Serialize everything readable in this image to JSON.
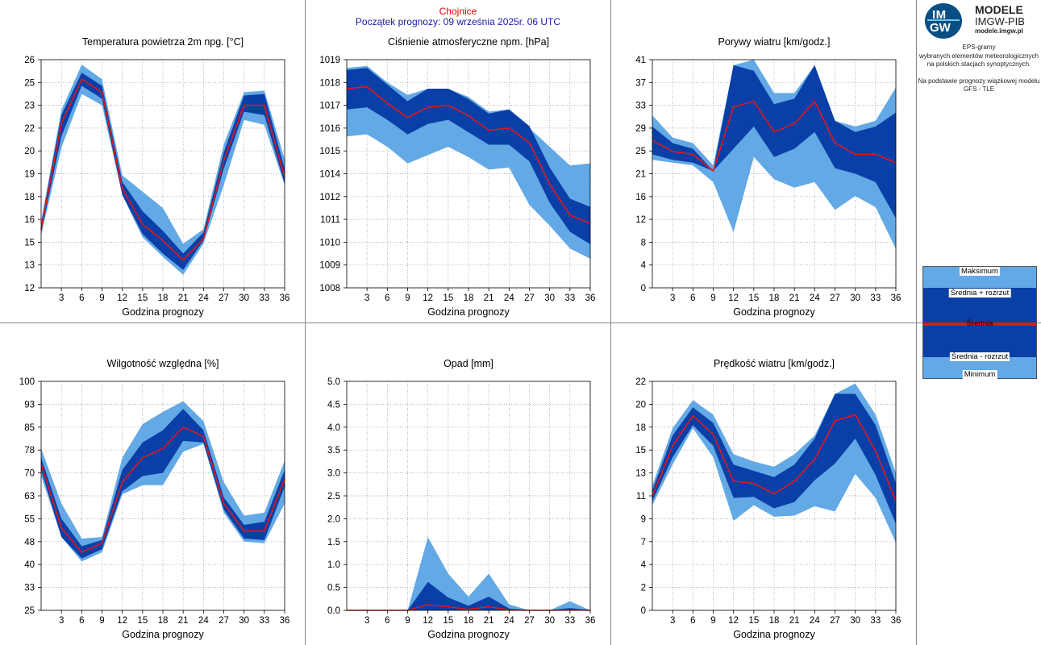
{
  "header": {
    "station": "Chojnice",
    "forecast_start": "Początek prognozy: 09 września 2025r. 06 UTC"
  },
  "xlabel": "Godzina prognozy",
  "colors": {
    "outer_band": "#62a9e5",
    "inner_band": "#0a3fa8",
    "mean": "#e01818",
    "grid": "#9a9a9a"
  },
  "side": {
    "brand_line1": "MODELE",
    "brand_line2": "IMGW-PIB",
    "brand_line3": "modele.imgw.pl",
    "logo_top": "IM",
    "logo_bottom": "GW",
    "description_lines": [
      "EPS-gramy",
      "wybranych elementów meteorologicznych",
      "na polskich stacjach  synoptycznych.",
      "",
      "Na podstawie prognozy wiązkowej modelu",
      "GFS - TLE"
    ],
    "legend": {
      "max": "Maksimum",
      "mean_plus": "Średnia + rozrzut",
      "mean": "Średnia",
      "mean_minus": "Średnia - rozrzut",
      "min": "Minimum"
    }
  },
  "chart_data": [
    {
      "type": "area",
      "title": "Temperatura powietrza 2m npg. [°C]",
      "x": [
        0,
        3,
        6,
        9,
        12,
        15,
        18,
        21,
        24,
        27,
        30,
        33,
        36
      ],
      "xticks": [
        3,
        6,
        9,
        12,
        15,
        18,
        21,
        24,
        27,
        30,
        33,
        36
      ],
      "yticks": [
        "12",
        "13",
        "15",
        "16",
        "18",
        "19",
        "20",
        "22",
        "23",
        "25",
        "26"
      ],
      "ylim": [
        12,
        26
      ],
      "max": [
        16.1,
        22.9,
        25.7,
        24.8,
        18.9,
        17.9,
        16.9,
        14.7,
        15.6,
        20.8,
        24.0,
        24.1,
        19.9
      ],
      "upper": [
        15.9,
        22.6,
        25.2,
        24.4,
        18.5,
        16.7,
        15.5,
        14.1,
        15.4,
        20.3,
        23.8,
        23.9,
        19.3
      ],
      "mean": [
        15.6,
        22.1,
        24.8,
        24.0,
        18.1,
        15.9,
        14.9,
        13.7,
        15.0,
        19.8,
        23.2,
        23.2,
        18.8
      ],
      "lower": [
        15.4,
        21.3,
        24.4,
        23.6,
        17.7,
        15.3,
        14.1,
        13.1,
        14.9,
        19.3,
        22.8,
        22.6,
        18.4
      ],
      "min": [
        15.2,
        20.6,
        23.9,
        23.2,
        17.7,
        15.1,
        13.9,
        12.8,
        14.7,
        18.3,
        22.3,
        22.0,
        18.3
      ]
    },
    {
      "type": "area",
      "title": "Ciśnienie atmosferyczne npm. [hPa]",
      "x": [
        0,
        3,
        6,
        9,
        12,
        15,
        18,
        21,
        24,
        27,
        30,
        33,
        36
      ],
      "xticks": [
        3,
        6,
        9,
        12,
        15,
        18,
        21,
        24,
        27,
        30,
        33,
        36
      ],
      "yticks": [
        "1008",
        "1009",
        "1010",
        "1011",
        "1012",
        "1014",
        "1015",
        "1016",
        "1017",
        "1018",
        "1019"
      ],
      "ylim": [
        1008,
        1019
      ],
      "max": [
        1018.6,
        1018.7,
        1017.9,
        1017.3,
        1017.6,
        1017.6,
        1017.2,
        1016.5,
        1016.6,
        1015.7,
        1014.8,
        1013.9,
        1014.0
      ],
      "upper": [
        1018.5,
        1018.6,
        1017.8,
        1017.0,
        1017.6,
        1017.6,
        1017.1,
        1016.4,
        1016.6,
        1015.8,
        1013.8,
        1012.3,
        1011.9
      ],
      "mean": [
        1017.6,
        1017.7,
        1016.9,
        1016.2,
        1016.7,
        1016.8,
        1016.3,
        1015.6,
        1015.7,
        1015.0,
        1013.0,
        1011.5,
        1011.1
      ],
      "lower": [
        1016.6,
        1016.7,
        1016.1,
        1015.4,
        1015.9,
        1016.1,
        1015.5,
        1014.9,
        1014.9,
        1014.1,
        1012.1,
        1010.7,
        1010.1
      ],
      "min": [
        1015.3,
        1015.4,
        1014.8,
        1014.0,
        1014.4,
        1014.8,
        1014.3,
        1013.7,
        1013.8,
        1012.0,
        1011.0,
        1009.9,
        1009.4
      ]
    },
    {
      "type": "area",
      "title": "Porywy wiatru [km/godz.]",
      "x": [
        0,
        3,
        6,
        9,
        12,
        15,
        18,
        21,
        24,
        27,
        30,
        33,
        36
      ],
      "xticks": [
        3,
        6,
        9,
        12,
        15,
        18,
        21,
        24,
        27,
        30,
        33,
        36
      ],
      "yticks": [
        "0",
        "4",
        "8",
        "12",
        "16",
        "21",
        "25",
        "29",
        "33",
        "37",
        "41"
      ],
      "ylim": [
        0,
        41
      ],
      "max": [
        31,
        27,
        26,
        22,
        40,
        41,
        35,
        35,
        40,
        30,
        29,
        30,
        36
      ],
      "upper": [
        29,
        26,
        25,
        21,
        40,
        39,
        33,
        34,
        40,
        30,
        28,
        29,
        31.5
      ],
      "mean": [
        26.5,
        24.5,
        24,
        21,
        32.5,
        33.5,
        28,
        29.5,
        33.5,
        26,
        24,
        24,
        22.5
      ],
      "lower": [
        24,
        23,
        22.5,
        21,
        25,
        29,
        23.5,
        25,
        28,
        21.5,
        20.5,
        19,
        12.5
      ],
      "min": [
        23,
        22.5,
        22,
        19,
        10,
        23.5,
        19.5,
        18,
        19,
        14,
        16.5,
        14.5,
        7
      ]
    },
    {
      "type": "area",
      "title": "Wilgotność względna [%]",
      "x": [
        0,
        3,
        6,
        9,
        12,
        15,
        18,
        21,
        24,
        27,
        30,
        33,
        36
      ],
      "xticks": [
        3,
        6,
        9,
        12,
        15,
        18,
        21,
        24,
        27,
        30,
        33,
        36
      ],
      "yticks": [
        "25",
        "33",
        "40",
        "48",
        "55",
        "63",
        "70",
        "78",
        "85",
        "93",
        "100"
      ],
      "ylim": [
        25,
        100
      ],
      "max": [
        78,
        60,
        48.5,
        49,
        75,
        86,
        90,
        93.5,
        87,
        67,
        56,
        57,
        74
      ],
      "upper": [
        75,
        55,
        46,
        48,
        71,
        80,
        84,
        91,
        84,
        62,
        53,
        54,
        71
      ],
      "mean": [
        73,
        52,
        44,
        47,
        67,
        75,
        78,
        85,
        82,
        60,
        51,
        51,
        68
      ],
      "lower": [
        71,
        49,
        42,
        45,
        64,
        69,
        70,
        80.5,
        80,
        58,
        48.5,
        48,
        65.5
      ],
      "min": [
        69,
        49,
        41,
        44,
        63,
        66,
        66,
        77,
        79.5,
        57,
        47.5,
        47,
        60
      ]
    },
    {
      "type": "area",
      "title": "Opad [mm]",
      "x": [
        0,
        3,
        6,
        9,
        12,
        15,
        18,
        21,
        24,
        27,
        30,
        33,
        36
      ],
      "xticks": [
        3,
        6,
        9,
        12,
        15,
        18,
        21,
        24,
        27,
        30,
        33,
        36
      ],
      "yticks": [
        "0.0",
        "0.5",
        "1.0",
        "1.5",
        "2.0",
        "2.5",
        "3.0",
        "3.5",
        "4.0",
        "4.5",
        "5.0"
      ],
      "ylim": [
        0,
        5
      ],
      "max": [
        0,
        0,
        0,
        0,
        1.6,
        0.8,
        0.3,
        0.8,
        0.13,
        0,
        0,
        0.2,
        0
      ],
      "upper": [
        0,
        0,
        0,
        0,
        0.62,
        0.28,
        0.1,
        0.3,
        0.04,
        0,
        0,
        0.05,
        0
      ],
      "mean": [
        0,
        0,
        0,
        0,
        0.12,
        0.08,
        0.02,
        0.08,
        0.01,
        0,
        0,
        0.01,
        0
      ],
      "lower": [
        0,
        0,
        0,
        0,
        0,
        0,
        0,
        0,
        0,
        0,
        0,
        0,
        0
      ],
      "min": [
        0,
        0,
        0,
        0,
        0,
        0,
        0,
        0,
        0,
        0,
        0,
        0,
        0
      ]
    },
    {
      "type": "area",
      "title": "Prędkość wiatru [km/godz.]",
      "x": [
        0,
        3,
        6,
        9,
        12,
        15,
        18,
        21,
        24,
        27,
        30,
        33,
        36
      ],
      "xticks": [
        3,
        6,
        9,
        12,
        15,
        18,
        21,
        24,
        27,
        30,
        33,
        36
      ],
      "yticks": [
        "0",
        "2",
        "4",
        "7",
        "9",
        "11",
        "13",
        "15",
        "18",
        "20",
        "22"
      ],
      "ylim": [
        0,
        22
      ],
      "max": [
        12,
        17.5,
        20.2,
        18.8,
        15,
        14.3,
        13.8,
        15,
        16.8,
        20.8,
        21.8,
        18.8,
        13.2
      ],
      "upper": [
        11.5,
        16.8,
        19.5,
        18,
        14,
        13.4,
        12.8,
        14,
        16.5,
        20.8,
        20.8,
        17.8,
        12.2
      ],
      "mean": [
        11,
        15.8,
        18.7,
        16.9,
        12.4,
        12.2,
        11.2,
        12.4,
        14.5,
        18.2,
        18.8,
        15.3,
        10.5
      ],
      "lower": [
        10.5,
        14.7,
        17.8,
        15.8,
        10.8,
        10.9,
        9.8,
        10.4,
        12.5,
        14.1,
        16.5,
        13,
        8.3
      ],
      "min": [
        10.1,
        14,
        17.5,
        14.7,
        8.6,
        10.1,
        9,
        9.1,
        10,
        9.5,
        13.1,
        10.8,
        6.5
      ]
    }
  ]
}
